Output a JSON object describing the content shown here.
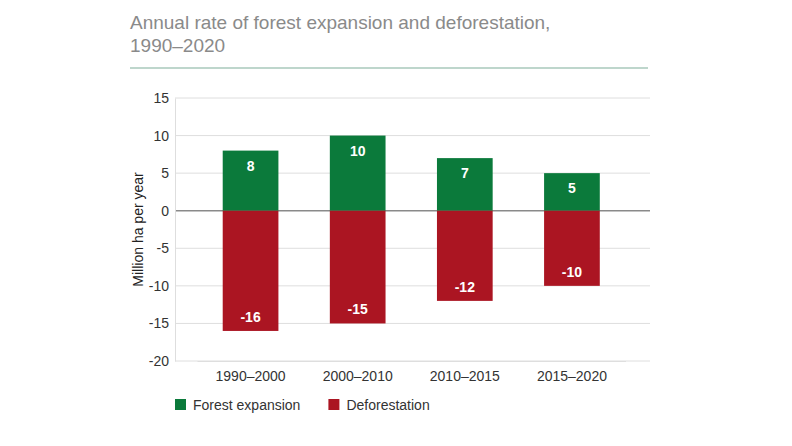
{
  "chart_data": {
    "type": "bar",
    "title": "Annual rate of forest expansion and deforestation, 1990–2020",
    "y_label": "Million ha per year",
    "categories": [
      "1990–2000",
      "2000–2010",
      "2010–2015",
      "2015–2020"
    ],
    "series": [
      {
        "name": "Forest expansion",
        "color": "#0b7a3b",
        "values": [
          8,
          10,
          7,
          5
        ]
      },
      {
        "name": "Deforestation",
        "color": "#ab1522",
        "values": [
          -16,
          -15,
          -12,
          -10
        ]
      }
    ],
    "ylim": [
      -20,
      15
    ],
    "yticks": [
      -20,
      -15,
      -10,
      -5,
      0,
      5,
      10,
      15
    ],
    "grid": true,
    "data_labels": true,
    "legend": "bottom"
  }
}
